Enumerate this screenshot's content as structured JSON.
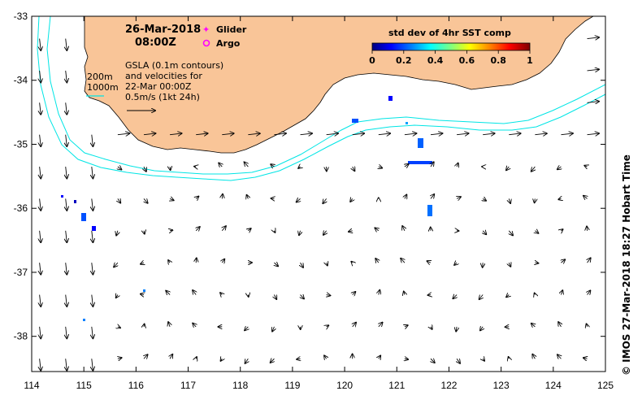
{
  "map": {
    "date": "26-Mar-2018",
    "time": "08:00Z",
    "legend": {
      "glider_label": "Glider",
      "glider_color": "#ff00ff",
      "argo_label": "Argo",
      "argo_color": "#ff00ff"
    },
    "gsla_note": {
      "line1": "GSLA (0.1m contours)",
      "line2": "and velocities for",
      "line3": "22-Mar 00:00Z",
      "line4": "0.5m/s (1kt 24h)"
    },
    "isobaths": {
      "label_200": "200m",
      "label_1000": "1000m",
      "color": "#00e5e5"
    },
    "colorbar": {
      "title": "std dev of 4hr SST comp",
      "ticks": [
        "0",
        "0.2",
        "0.4",
        "0.6",
        "0.8",
        "1"
      ],
      "colors": [
        "#000080",
        "#0000ff",
        "#0080ff",
        "#00ffff",
        "#80ff80",
        "#ffff00",
        "#ff8000",
        "#ff0000",
        "#800000"
      ]
    },
    "x_ticks": [
      "114",
      "115",
      "116",
      "117",
      "118",
      "119",
      "120",
      "121",
      "122",
      "123",
      "124",
      "125"
    ],
    "y_ticks": [
      "-33",
      "-34",
      "-35",
      "-36",
      "-37",
      "-38"
    ],
    "lon_range": [
      114,
      125
    ],
    "lat_range": [
      -38.55,
      -33
    ],
    "land_color": "#f9c598",
    "credit": "© IMOS 27-Mar-2018 18:27 Hobart Time"
  }
}
